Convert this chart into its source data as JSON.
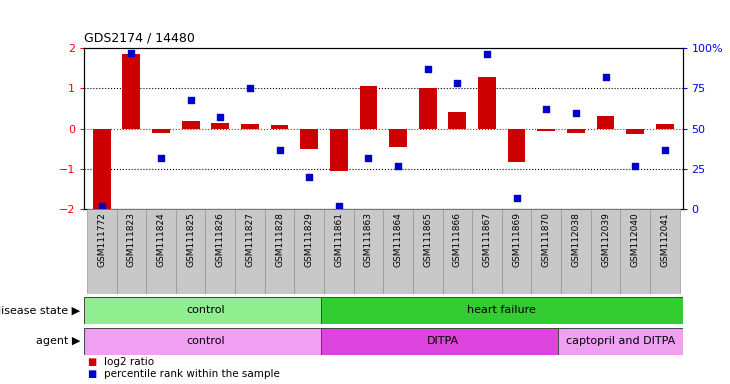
{
  "title": "GDS2174 / 14480",
  "samples": [
    "GSM111772",
    "GSM111823",
    "GSM111824",
    "GSM111825",
    "GSM111826",
    "GSM111827",
    "GSM111828",
    "GSM111829",
    "GSM111861",
    "GSM111863",
    "GSM111864",
    "GSM111865",
    "GSM111866",
    "GSM111867",
    "GSM111869",
    "GSM111870",
    "GSM112038",
    "GSM112039",
    "GSM112040",
    "GSM112041"
  ],
  "log2_ratio": [
    -2.0,
    1.85,
    -0.12,
    0.18,
    0.15,
    0.12,
    0.1,
    -0.5,
    -1.05,
    1.05,
    -0.45,
    1.0,
    0.42,
    1.28,
    -0.82,
    -0.05,
    -0.1,
    0.32,
    -0.14,
    0.12
  ],
  "percentile_rank": [
    2,
    97,
    32,
    68,
    57,
    75,
    37,
    20,
    2,
    32,
    27,
    87,
    78,
    96,
    7,
    62,
    60,
    82,
    27,
    37
  ],
  "bar_color": "#cc0000",
  "dot_color": "#0000cc",
  "ylim": [
    -2,
    2
  ],
  "yticks_left": [
    -2,
    -1,
    0,
    1,
    2
  ],
  "yticks_right": [
    0,
    25,
    50,
    75,
    100
  ],
  "disease_state_groups": [
    {
      "label": "control",
      "start": 0,
      "end": 8,
      "color": "#90ee90"
    },
    {
      "label": "heart failure",
      "start": 8,
      "end": 20,
      "color": "#33cc33"
    }
  ],
  "agent_groups": [
    {
      "label": "control",
      "start": 0,
      "end": 8,
      "color": "#f0a0f0"
    },
    {
      "label": "DITPA",
      "start": 8,
      "end": 16,
      "color": "#dd44dd"
    },
    {
      "label": "captopril and DITPA",
      "start": 16,
      "end": 20,
      "color": "#f0a0f0"
    }
  ],
  "legend_items": [
    {
      "color": "#cc0000",
      "label": "log2 ratio"
    },
    {
      "color": "#0000cc",
      "label": "percentile rank within the sample"
    }
  ],
  "background_color": "#ffffff",
  "xtick_bg": "#c8c8c8",
  "tick_fontsize": 6.5,
  "label_fontsize": 8,
  "title_fontsize": 9
}
